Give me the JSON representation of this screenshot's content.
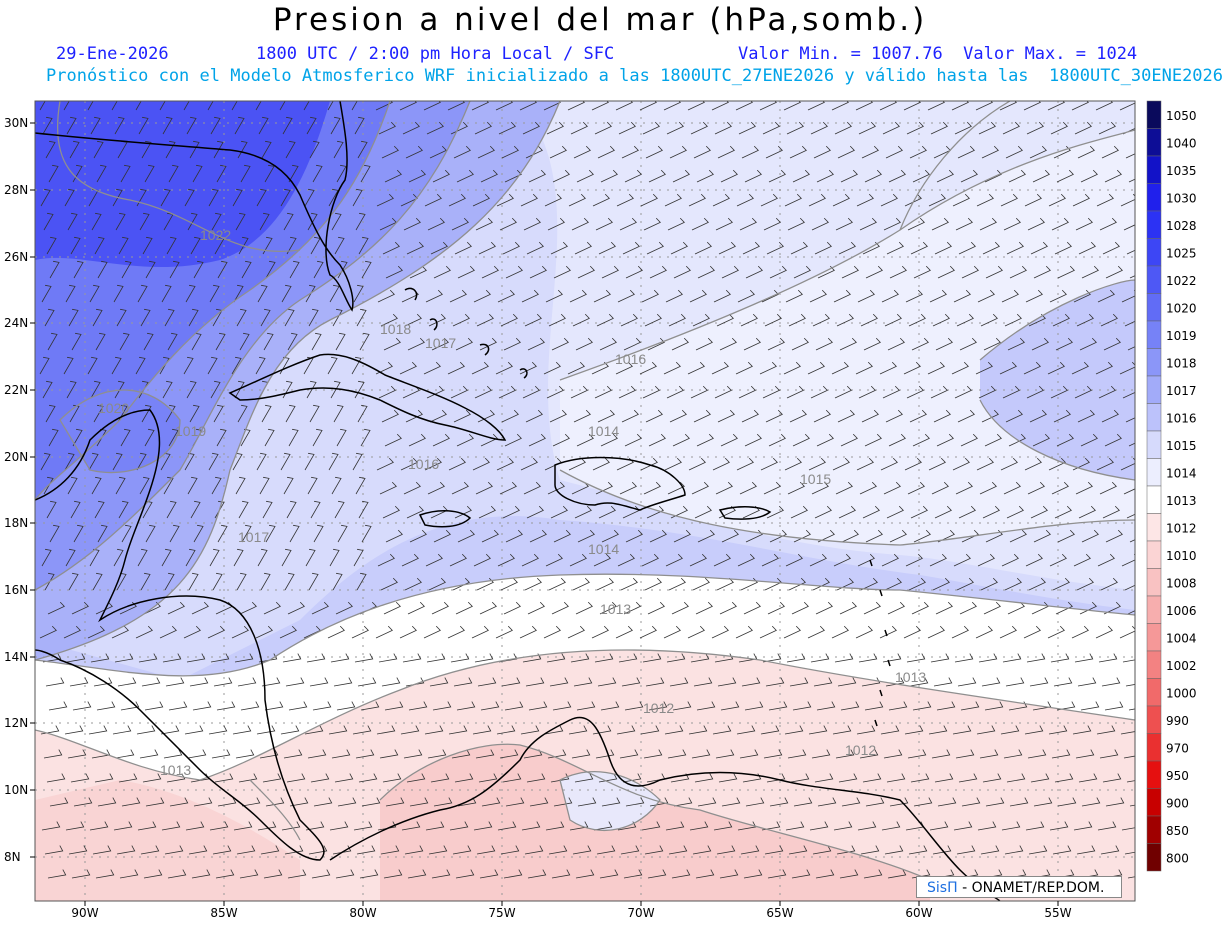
{
  "header": {
    "title": "Presion a nivel del mar (hPa,somb.)",
    "date": "29-Ene-2026",
    "time": "1800 UTC / 2:00 pm Hora Local / SFC",
    "minmax": "Valor Min. = 1007.76  Valor Max. = 1024",
    "forecast": "Pronóstico con el Modelo Atmosferico WRF inicializado a las 1800UTC_27ENE2026 y válido hasta las  1800UTC_30ENE2026"
  },
  "axes": {
    "lat_labels": [
      "30N",
      "28N",
      "26N",
      "24N",
      "22N",
      "20N",
      "18N",
      "16N",
      "14N",
      "12N",
      "10N",
      "8N"
    ],
    "lon_labels": [
      "90W",
      "85W",
      "80W",
      "75W",
      "70W",
      "65W",
      "60W",
      "55W"
    ]
  },
  "contour_labels": [
    "1022",
    "1018",
    "1017",
    "1016",
    "1020",
    "1019",
    "1016",
    "1014",
    "1015",
    "1017",
    "1014",
    "1013",
    "1013",
    "1012",
    "1012",
    "1013"
  ],
  "colorbar": {
    "levels": [
      "1050",
      "1040",
      "1035",
      "1030",
      "1028",
      "1025",
      "1022",
      "1020",
      "1019",
      "1018",
      "1017",
      "1016",
      "1015",
      "1014",
      "1013",
      "1012",
      "1010",
      "1008",
      "1006",
      "1004",
      "1002",
      "1000",
      "990",
      "970",
      "950",
      "900",
      "850",
      "800"
    ],
    "colors": [
      "#0a0a5c",
      "#0d0d96",
      "#1212c8",
      "#2020ec",
      "#2c32f4",
      "#3d46f5",
      "#4e58f5",
      "#616cf6",
      "#7682f7",
      "#8b96f8",
      "#a2abf9",
      "#bcc2fb",
      "#d6dafc",
      "#eceefe",
      "#ffffff",
      "#fde6e6",
      "#fbd4d4",
      "#f9c2c2",
      "#f7aeae",
      "#f59898",
      "#f38282",
      "#f16a6a",
      "#ee5050",
      "#ea3030",
      "#e51010",
      "#c80000",
      "#a00000",
      "#700000"
    ]
  },
  "credit": {
    "brand": "SisΠ",
    "org": "- ONAMET/REP.DOM."
  }
}
